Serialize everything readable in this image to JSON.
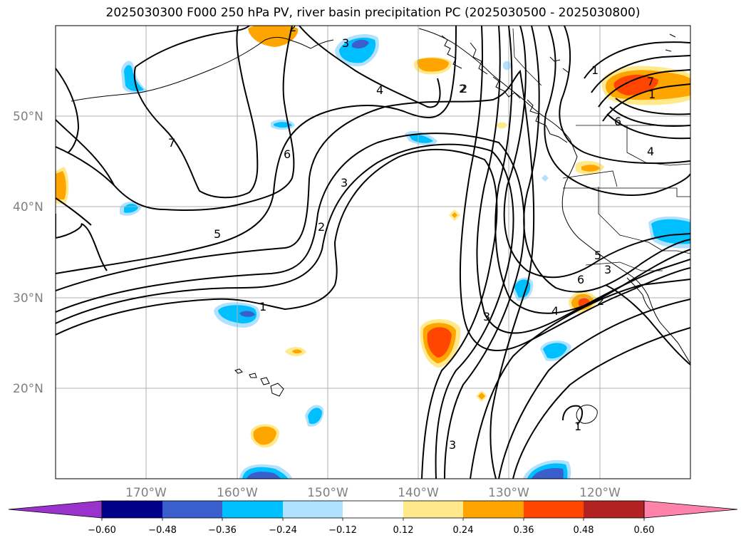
{
  "title": "2025030300 F000 250 hPa PV, river basin precipitation PC (2025030500 - 2025030800)",
  "lat_labels": [
    "50°N",
    "40°N",
    "30°N",
    "20°N"
  ],
  "lon_labels": [
    "170°W",
    "160°W",
    "150°W",
    "140°W",
    "130°W",
    "120°W"
  ],
  "colorbar": {
    "ticks": [
      "−0.60",
      "−0.48",
      "−0.36",
      "−0.24",
      "−0.12",
      "0.12",
      "0.24",
      "0.36",
      "0.48",
      "0.60"
    ],
    "colors": {
      "under": "#9933cc",
      "c1": "#00008b",
      "c2": "#3a5fcd",
      "c3": "#00bfff",
      "c4": "#b0e2ff",
      "c5": "#ffffff",
      "c6": "#ffe98a",
      "c7": "#ffa500",
      "c8": "#ff4500",
      "c9": "#b22222",
      "over": "#ff82ab"
    }
  },
  "contour_labels": [
    "1",
    "2",
    "3",
    "4",
    "5",
    "6",
    "7",
    "1",
    "2",
    "3",
    "4",
    "5",
    "6",
    "7",
    "2",
    "3",
    "1",
    "2",
    "3",
    "4",
    "6",
    "3",
    "2",
    "1",
    "1",
    "3",
    "3",
    "2"
  ]
}
